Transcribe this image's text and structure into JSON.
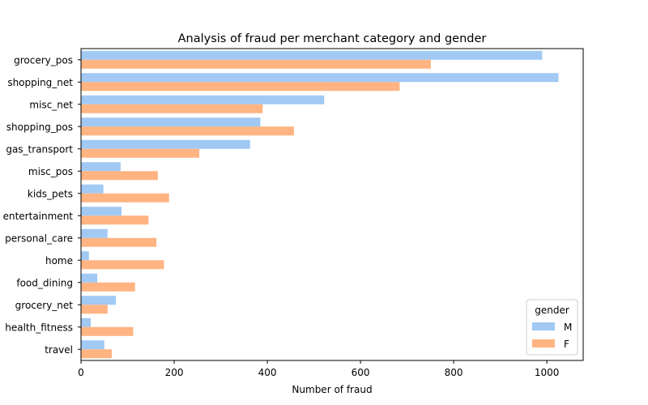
{
  "chart_data": {
    "type": "bar",
    "orientation": "horizontal",
    "title": "Analysis of fraud per merchant category and gender",
    "xlabel": "Number of fraud",
    "ylabel": "",
    "xlim": [
      0,
      1078
    ],
    "xticks": [
      0,
      200,
      400,
      600,
      800,
      1000
    ],
    "grid": false,
    "categories": [
      "grocery_pos",
      "shopping_net",
      "misc_net",
      "shopping_pos",
      "gas_transport",
      "misc_pos",
      "kids_pets",
      "entertainment",
      "personal_care",
      "home",
      "food_dining",
      "grocery_net",
      "health_fitness",
      "travel"
    ],
    "legend": {
      "title": "gender",
      "placement": "lower-right"
    },
    "series": [
      {
        "name": "M",
        "color": "#a1c9f4",
        "values": [
          990,
          1025,
          522,
          385,
          363,
          85,
          48,
          87,
          57,
          17,
          35,
          75,
          21,
          50
        ]
      },
      {
        "name": "F",
        "color": "#ffb482",
        "values": [
          751,
          684,
          390,
          457,
          254,
          165,
          189,
          145,
          162,
          178,
          116,
          57,
          112,
          66
        ]
      }
    ]
  }
}
